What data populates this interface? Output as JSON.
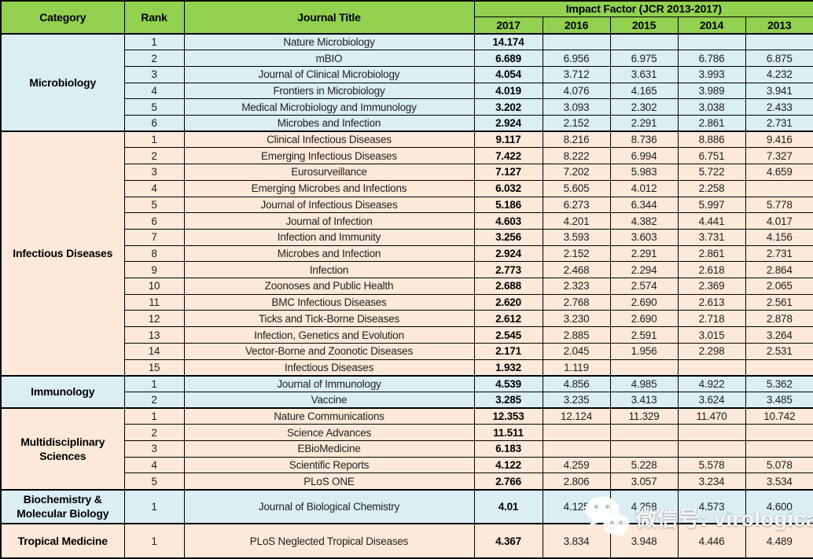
{
  "header": {
    "category": "Category",
    "rank": "Rank",
    "journal": "Journal Title",
    "impact_factor": "Impact Factor (JCR 2013-2017)",
    "years": [
      "2017",
      "2016",
      "2015",
      "2014",
      "2013"
    ]
  },
  "colors": {
    "header_green": "#92D050",
    "row_blue": "#DAEEF3",
    "row_peach": "#FDE9D9",
    "border": "#000000",
    "watermark": "#FFFFFF"
  },
  "sections": [
    {
      "category": "Microbiology",
      "tone": "blue",
      "tall": false,
      "rows": [
        {
          "rank": "1",
          "journal": "Nature Microbiology",
          "values": [
            "14.174",
            "",
            "",
            "",
            ""
          ]
        },
        {
          "rank": "2",
          "journal": "mBIO",
          "values": [
            "6.689",
            "6.956",
            "6.975",
            "6.786",
            "6.875"
          ]
        },
        {
          "rank": "3",
          "journal": "Journal of Clinical Microbiology",
          "values": [
            "4.054",
            "3.712",
            "3.631",
            "3.993",
            "4.232"
          ]
        },
        {
          "rank": "4",
          "journal": "Frontiers in Microbiology",
          "values": [
            "4.019",
            "4.076",
            "4.165",
            "3.989",
            "3.941"
          ]
        },
        {
          "rank": "5",
          "journal": "Medical Microbiology and Immunology",
          "values": [
            "3.202",
            "3.093",
            "2.302",
            "3.038",
            "2.433"
          ]
        },
        {
          "rank": "6",
          "journal": "Microbes and Infection",
          "values": [
            "2.924",
            "2.152",
            "2.291",
            "2.861",
            "2.731"
          ]
        }
      ]
    },
    {
      "category": "Infectious Diseases",
      "tone": "peach",
      "tall": false,
      "rows": [
        {
          "rank": "1",
          "journal": "Clinical Infectious Diseases",
          "values": [
            "9.117",
            "8.216",
            "8.736",
            "8.886",
            "9.416"
          ]
        },
        {
          "rank": "2",
          "journal": "Emerging Infectious Diseases",
          "values": [
            "7.422",
            "8.222",
            "6.994",
            "6.751",
            "7.327"
          ]
        },
        {
          "rank": "3",
          "journal": "Eurosurveillance",
          "values": [
            "7.127",
            "7.202",
            "5.983",
            "5.722",
            "4.659"
          ]
        },
        {
          "rank": "4",
          "journal": "Emerging Microbes and Infections",
          "values": [
            "6.032",
            "5.605",
            "4.012",
            "2.258",
            ""
          ]
        },
        {
          "rank": "5",
          "journal": "Journal of Infectious Diseases",
          "values": [
            "5.186",
            "6.273",
            "6.344",
            "5.997",
            "5.778"
          ]
        },
        {
          "rank": "6",
          "journal": "Journal of Infection",
          "values": [
            "4.603",
            "4.201",
            "4.382",
            "4.441",
            "4.017"
          ]
        },
        {
          "rank": "7",
          "journal": "Infection and Immunity",
          "values": [
            "3.256",
            "3.593",
            "3.603",
            "3.731",
            "4.156"
          ]
        },
        {
          "rank": "8",
          "journal": "Microbes and Infection",
          "values": [
            "2.924",
            "2.152",
            "2.291",
            "2.861",
            "2.731"
          ]
        },
        {
          "rank": "9",
          "journal": "Infection",
          "values": [
            "2.773",
            "2.468",
            "2.294",
            "2.618",
            "2.864"
          ]
        },
        {
          "rank": "10",
          "journal": "Zoonoses and Public Health",
          "values": [
            "2.688",
            "2.323",
            "2.574",
            "2.369",
            "2.065"
          ]
        },
        {
          "rank": "11",
          "journal": "BMC Infectious Diseases",
          "values": [
            "2.620",
            "2.768",
            "2.690",
            "2.613",
            "2.561"
          ]
        },
        {
          "rank": "12",
          "journal": "Ticks and Tick-Borne Diseases",
          "values": [
            "2.612",
            "3.230",
            "2.690",
            "2.718",
            "2.878"
          ]
        },
        {
          "rank": "13",
          "journal": "Infection, Genetics and Evolution",
          "values": [
            "2.545",
            "2.885",
            "2.591",
            "3.015",
            "3.264"
          ]
        },
        {
          "rank": "14",
          "journal": "Vector-Borne and Zoonotic Diseases",
          "values": [
            "2.171",
            "2.045",
            "1.956",
            "2.298",
            "2.531"
          ]
        },
        {
          "rank": "15",
          "journal": "Infectious Diseases",
          "values": [
            "1.932",
            "1.119",
            "",
            "",
            ""
          ]
        }
      ]
    },
    {
      "category": "Immunology",
      "tone": "blue",
      "tall": false,
      "rows": [
        {
          "rank": "1",
          "journal": "Journal of Immunology",
          "values": [
            "4.539",
            "4.856",
            "4.985",
            "4.922",
            "5.362"
          ]
        },
        {
          "rank": "2",
          "journal": "Vaccine",
          "values": [
            "3.285",
            "3.235",
            "3.413",
            "3.624",
            "3.485"
          ]
        }
      ]
    },
    {
      "category": "Multidisciplinary Sciences",
      "tone": "peach",
      "tall": false,
      "rows": [
        {
          "rank": "1",
          "journal": "Nature Communications",
          "values": [
            "12.353",
            "12.124",
            "11.329",
            "11.470",
            "10.742"
          ]
        },
        {
          "rank": "2",
          "journal": "Science Advances",
          "values": [
            "11.511",
            "",
            "",
            "",
            ""
          ]
        },
        {
          "rank": "3",
          "journal": "EBioMedicine",
          "values": [
            "6.183",
            "",
            "",
            "",
            ""
          ]
        },
        {
          "rank": "4",
          "journal": "Scientific Reports",
          "values": [
            "4.122",
            "4.259",
            "5.228",
            "5.578",
            "5.078"
          ]
        },
        {
          "rank": "5",
          "journal": "PLoS ONE",
          "values": [
            "2.766",
            "2.806",
            "3.057",
            "3.234",
            "3.534"
          ]
        }
      ]
    },
    {
      "category": "Biochemistry & Molecular Biology",
      "tone": "blue",
      "tall": true,
      "rows": [
        {
          "rank": "1",
          "journal": "Journal of Biological Chemistry",
          "values": [
            "4.01",
            "4.125",
            "4.258",
            "4.573",
            "4.600"
          ]
        }
      ]
    },
    {
      "category": "Tropical Medicine",
      "tone": "peach",
      "tall": true,
      "rows": [
        {
          "rank": "1",
          "journal": "PLoS Neglected Tropical Diseases",
          "values": [
            "4.367",
            "3.834",
            "3.948",
            "4.446",
            "4.489"
          ]
        }
      ]
    }
  ],
  "watermark": {
    "icon": "wechat-icon",
    "text": "微信号: virologica"
  },
  "chart_data": {
    "type": "table",
    "title": "Impact Factor (JCR 2013-2017)",
    "columns": [
      "Category",
      "Rank",
      "Journal Title",
      "2017",
      "2016",
      "2015",
      "2014",
      "2013"
    ],
    "rows": [
      [
        "Microbiology",
        1,
        "Nature Microbiology",
        14.174,
        null,
        null,
        null,
        null
      ],
      [
        "Microbiology",
        2,
        "mBIO",
        6.689,
        6.956,
        6.975,
        6.786,
        6.875
      ],
      [
        "Microbiology",
        3,
        "Journal of Clinical Microbiology",
        4.054,
        3.712,
        3.631,
        3.993,
        4.232
      ],
      [
        "Microbiology",
        4,
        "Frontiers in Microbiology",
        4.019,
        4.076,
        4.165,
        3.989,
        3.941
      ],
      [
        "Microbiology",
        5,
        "Medical Microbiology and Immunology",
        3.202,
        3.093,
        2.302,
        3.038,
        2.433
      ],
      [
        "Microbiology",
        6,
        "Microbes and Infection",
        2.924,
        2.152,
        2.291,
        2.861,
        2.731
      ],
      [
        "Infectious Diseases",
        1,
        "Clinical Infectious Diseases",
        9.117,
        8.216,
        8.736,
        8.886,
        9.416
      ],
      [
        "Infectious Diseases",
        2,
        "Emerging Infectious Diseases",
        7.422,
        8.222,
        6.994,
        6.751,
        7.327
      ],
      [
        "Infectious Diseases",
        3,
        "Eurosurveillance",
        7.127,
        7.202,
        5.983,
        5.722,
        4.659
      ],
      [
        "Infectious Diseases",
        4,
        "Emerging Microbes and Infections",
        6.032,
        5.605,
        4.012,
        2.258,
        null
      ],
      [
        "Infectious Diseases",
        5,
        "Journal of Infectious Diseases",
        5.186,
        6.273,
        6.344,
        5.997,
        5.778
      ],
      [
        "Infectious Diseases",
        6,
        "Journal of Infection",
        4.603,
        4.201,
        4.382,
        4.441,
        4.017
      ],
      [
        "Infectious Diseases",
        7,
        "Infection and Immunity",
        3.256,
        3.593,
        3.603,
        3.731,
        4.156
      ],
      [
        "Infectious Diseases",
        8,
        "Microbes and Infection",
        2.924,
        2.152,
        2.291,
        2.861,
        2.731
      ],
      [
        "Infectious Diseases",
        9,
        "Infection",
        2.773,
        2.468,
        2.294,
        2.618,
        2.864
      ],
      [
        "Infectious Diseases",
        10,
        "Zoonoses and Public Health",
        2.688,
        2.323,
        2.574,
        2.369,
        2.065
      ],
      [
        "Infectious Diseases",
        11,
        "BMC Infectious Diseases",
        2.62,
        2.768,
        2.69,
        2.613,
        2.561
      ],
      [
        "Infectious Diseases",
        12,
        "Ticks and Tick-Borne Diseases",
        2.612,
        3.23,
        2.69,
        2.718,
        2.878
      ],
      [
        "Infectious Diseases",
        13,
        "Infection, Genetics and Evolution",
        2.545,
        2.885,
        2.591,
        3.015,
        3.264
      ],
      [
        "Infectious Diseases",
        14,
        "Vector-Borne and Zoonotic Diseases",
        2.171,
        2.045,
        1.956,
        2.298,
        2.531
      ],
      [
        "Infectious Diseases",
        15,
        "Infectious Diseases",
        1.932,
        1.119,
        null,
        null,
        null
      ],
      [
        "Immunology",
        1,
        "Journal of Immunology",
        4.539,
        4.856,
        4.985,
        4.922,
        5.362
      ],
      [
        "Immunology",
        2,
        "Vaccine",
        3.285,
        3.235,
        3.413,
        3.624,
        3.485
      ],
      [
        "Multidisciplinary Sciences",
        1,
        "Nature Communications",
        12.353,
        12.124,
        11.329,
        11.47,
        10.742
      ],
      [
        "Multidisciplinary Sciences",
        2,
        "Science Advances",
        11.511,
        null,
        null,
        null,
        null
      ],
      [
        "Multidisciplinary Sciences",
        3,
        "EBioMedicine",
        6.183,
        null,
        null,
        null,
        null
      ],
      [
        "Multidisciplinary Sciences",
        4,
        "Scientific Reports",
        4.122,
        4.259,
        5.228,
        5.578,
        5.078
      ],
      [
        "Multidisciplinary Sciences",
        5,
        "PLoS ONE",
        2.766,
        2.806,
        3.057,
        3.234,
        3.534
      ],
      [
        "Biochemistry & Molecular Biology",
        1,
        "Journal of Biological Chemistry",
        4.01,
        4.125,
        4.258,
        4.573,
        4.6
      ],
      [
        "Tropical Medicine",
        1,
        "PLoS Neglected Tropical Diseases",
        4.367,
        3.834,
        3.948,
        4.446,
        4.489
      ]
    ]
  }
}
